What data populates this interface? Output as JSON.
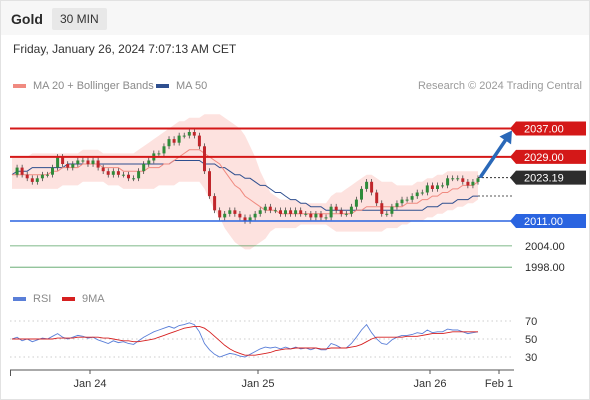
{
  "header": {
    "title": "Gold",
    "interval": "30 MIN"
  },
  "datetime": "Friday, January 26, 2024 7:07:13 AM CET",
  "legend": {
    "ma_bb": "MA 20 + Bollinger Bands",
    "ma50": "MA 50",
    "rsi": "RSI",
    "rsi_ma": "9MA"
  },
  "credit": "Research © 2024 Trading Central",
  "colors": {
    "ma_bb": "#f08a80",
    "ma50": "#2f4f8f",
    "rsi": "#5a7fd8",
    "rsi_ma": "#d62020",
    "up": "#2f8b3a",
    "down": "#c0262b",
    "resistance": "#d41818",
    "support": "#2a64e0",
    "target": "#2a8a3a",
    "arrow": "#2a68b8"
  },
  "chart_data": [
    {
      "type": "candlestick",
      "ylim": [
        1993,
        2045
      ],
      "price_levels": [
        {
          "value": 2037.0,
          "label": "2037.00",
          "kind": "resistance"
        },
        {
          "value": 2029.0,
          "label": "2029.00",
          "kind": "resistance"
        },
        {
          "value": 2023.19,
          "label": "2023.19",
          "kind": "current"
        },
        {
          "value": 2011.0,
          "label": "2011.00",
          "kind": "support"
        },
        {
          "value": 2004.0,
          "label": "2004.00",
          "kind": "target"
        },
        {
          "value": 1998.0,
          "label": "1998.00",
          "kind": "target"
        }
      ],
      "x_ticks": [
        "Jan 24",
        "Jan 25",
        "Jan 26",
        "Feb 1"
      ],
      "close_path": [
        2024,
        2026,
        2024,
        2023,
        2022,
        2023,
        2024,
        2024,
        2026,
        2029,
        2027,
        2026,
        2027,
        2028,
        2028,
        2027,
        2028,
        2026,
        2025,
        2024,
        2025,
        2024,
        2024,
        2023,
        2023,
        2025,
        2027,
        2028,
        2030,
        2030,
        2032,
        2034,
        2033,
        2035,
        2035,
        2036,
        2035,
        2032,
        2025,
        2018,
        2014,
        2012,
        2013,
        2014,
        2013,
        2012,
        2011,
        2012,
        2013,
        2014,
        2015,
        2014,
        2014,
        2013,
        2014,
        2013,
        2014,
        2013,
        2013,
        2012,
        2013,
        2012,
        2012,
        2015,
        2014,
        2013,
        2013,
        2015,
        2017,
        2020,
        2022,
        2019,
        2016,
        2013,
        2013,
        2015,
        2016,
        2017,
        2017,
        2018,
        2019,
        2019,
        2021,
        2020,
        2021,
        2021,
        2023,
        2023,
        2023,
        2022,
        2021,
        2022,
        2023
      ],
      "ma20_path": [
        2024,
        2024,
        2024,
        2024,
        2024,
        2024,
        2024,
        2024,
        2025,
        2025,
        2026,
        2026,
        2026,
        2026,
        2027,
        2027,
        2027,
        2027,
        2026,
        2026,
        2026,
        2026,
        2025,
        2025,
        2025,
        2025,
        2025,
        2026,
        2026,
        2026,
        2027,
        2027,
        2028,
        2029,
        2030,
        2031,
        2031,
        2031,
        2030,
        2029,
        2028,
        2027,
        2025,
        2023,
        2021,
        2020,
        2018,
        2017,
        2016,
        2015,
        2014,
        2014,
        2014,
        2013,
        2013,
        2013,
        2013,
        2013,
        2013,
        2013,
        2013,
        2013,
        2013,
        2013,
        2013,
        2013,
        2013,
        2013,
        2014,
        2014,
        2015,
        2015,
        2015,
        2015,
        2015,
        2015,
        2015,
        2015,
        2016,
        2016,
        2016,
        2017,
        2017,
        2018,
        2018,
        2019,
        2019,
        2020,
        2020,
        2021,
        2021,
        2021,
        2022
      ],
      "ma50_path": [
        2024,
        2025,
        2025,
        2025,
        2026,
        2026,
        2026,
        2026,
        2026,
        2026,
        2026,
        2027,
        2027,
        2027,
        2027,
        2027,
        2027,
        2027,
        2027,
        2027,
        2027,
        2027,
        2027,
        2027,
        2027,
        2027,
        2027,
        2027,
        2027,
        2027,
        2027,
        2027,
        2028,
        2028,
        2028,
        2028,
        2028,
        2028,
        2027,
        2027,
        2027,
        2026,
        2026,
        2025,
        2024,
        2024,
        2023,
        2023,
        2022,
        2021,
        2021,
        2020,
        2019,
        2019,
        2018,
        2017,
        2017,
        2016,
        2016,
        2015,
        2015,
        2015,
        2014,
        2014,
        2014,
        2014,
        2014,
        2014,
        2014,
        2014,
        2014,
        2014,
        2014,
        2014,
        2014,
        2014,
        2014,
        2014,
        2014,
        2014,
        2014,
        2014,
        2015,
        2015,
        2015,
        2016,
        2016,
        2016,
        2017,
        2017,
        2017,
        2018,
        2018
      ],
      "bb_upper": [
        2029,
        2029,
        2029,
        2029,
        2030,
        2030,
        2030,
        2030,
        2030,
        2030,
        2030,
        2030,
        2030,
        2030,
        2031,
        2031,
        2031,
        2031,
        2030,
        2030,
        2030,
        2030,
        2030,
        2030,
        2030,
        2031,
        2032,
        2033,
        2034,
        2035,
        2036,
        2037,
        2038,
        2039,
        2039,
        2040,
        2040,
        2040,
        2041,
        2041,
        2041,
        2041,
        2040,
        2039,
        2038,
        2037,
        2035,
        2032,
        2029,
        2025,
        2022,
        2019,
        2018,
        2017,
        2017,
        2017,
        2017,
        2016,
        2016,
        2016,
        2016,
        2016,
        2016,
        2018,
        2019,
        2019,
        2020,
        2021,
        2022,
        2023,
        2024,
        2024,
        2023,
        2022,
        2022,
        2022,
        2021,
        2021,
        2021,
        2021,
        2022,
        2022,
        2023,
        2023,
        2024,
        2024,
        2025,
        2025,
        2025,
        2025,
        2025,
        2025,
        2025
      ],
      "bb_lower": [
        2020,
        2020,
        2020,
        2020,
        2020,
        2020,
        2020,
        2020,
        2020,
        2020,
        2021,
        2021,
        2021,
        2021,
        2022,
        2022,
        2022,
        2022,
        2022,
        2021,
        2021,
        2021,
        2020,
        2020,
        2020,
        2020,
        2020,
        2020,
        2020,
        2021,
        2021,
        2021,
        2021,
        2022,
        2022,
        2022,
        2022,
        2022,
        2020,
        2017,
        2014,
        2012,
        2009,
        2007,
        2005,
        2004,
        2003,
        2003,
        2004,
        2005,
        2006,
        2008,
        2009,
        2009,
        2009,
        2009,
        2009,
        2010,
        2010,
        2010,
        2010,
        2010,
        2010,
        2009,
        2008,
        2008,
        2008,
        2008,
        2008,
        2008,
        2008,
        2008,
        2008,
        2008,
        2009,
        2009,
        2009,
        2010,
        2010,
        2011,
        2011,
        2011,
        2012,
        2012,
        2013,
        2013,
        2014,
        2014,
        2015,
        2015,
        2016,
        2016,
        2017
      ],
      "arrow_target": 2037.0
    },
    {
      "type": "line",
      "series": [
        {
          "name": "RSI"
        },
        {
          "name": "9MA"
        }
      ],
      "y_ticks": [
        70,
        50,
        30
      ],
      "ylim": [
        20,
        80
      ],
      "rsi_path": [
        50,
        52,
        48,
        50,
        47,
        49,
        51,
        50,
        53,
        56,
        52,
        50,
        52,
        54,
        53,
        51,
        52,
        49,
        47,
        45,
        48,
        46,
        47,
        45,
        44,
        48,
        52,
        55,
        58,
        60,
        62,
        64,
        62,
        65,
        66,
        68,
        66,
        58,
        45,
        38,
        33,
        30,
        32,
        34,
        33,
        31,
        30,
        33,
        36,
        39,
        41,
        40,
        41,
        39,
        41,
        39,
        41,
        39,
        40,
        38,
        40,
        38,
        38,
        45,
        43,
        40,
        40,
        45,
        52,
        60,
        66,
        57,
        50,
        45,
        44,
        49,
        52,
        54,
        54,
        55,
        57,
        56,
        60,
        57,
        58,
        58,
        61,
        60,
        60,
        58,
        56,
        57,
        58
      ],
      "rsi_ma_path": [
        50,
        50,
        50,
        50,
        50,
        50,
        50,
        50,
        50,
        51,
        51,
        51,
        51,
        52,
        52,
        52,
        52,
        52,
        51,
        51,
        50,
        49,
        48,
        48,
        47,
        47,
        48,
        49,
        50,
        52,
        54,
        56,
        58,
        60,
        62,
        63,
        64,
        64,
        62,
        58,
        53,
        48,
        43,
        39,
        36,
        34,
        32,
        32,
        32,
        33,
        34,
        35,
        37,
        38,
        39,
        39,
        40,
        40,
        40,
        40,
        40,
        39,
        39,
        40,
        40,
        40,
        40,
        41,
        42,
        44,
        47,
        50,
        52,
        52,
        52,
        52,
        52,
        52,
        53,
        53,
        53,
        54,
        55,
        56,
        56,
        56,
        57,
        58,
        58,
        58,
        58,
        58,
        58
      ]
    }
  ]
}
